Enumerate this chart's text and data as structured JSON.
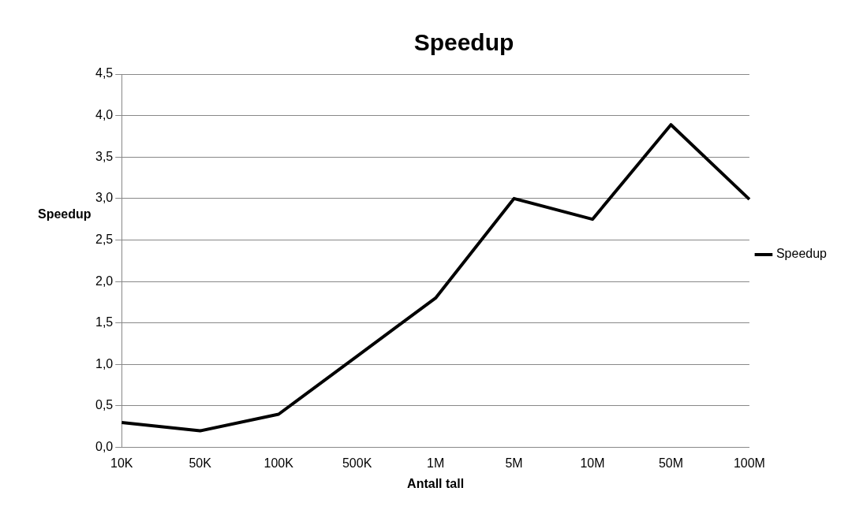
{
  "chart_data": {
    "type": "line",
    "title": "Speedup",
    "xlabel": "Antall tall",
    "ylabel": "Speedup",
    "categories": [
      "10K",
      "50K",
      "100K",
      "500K",
      "1M",
      "5M",
      "10M",
      "50M",
      "100M"
    ],
    "series": [
      {
        "name": "Speedup",
        "color": "#000000",
        "values": [
          0.3,
          0.2,
          0.4,
          1.1,
          1.8,
          3.0,
          2.75,
          3.89,
          2.99
        ]
      }
    ],
    "ylim": [
      0,
      4.5
    ],
    "yticks": [
      {
        "value": 0,
        "label": "0,0"
      },
      {
        "value": 0.5,
        "label": "0,5"
      },
      {
        "value": 1,
        "label": "1,0"
      },
      {
        "value": 1.5,
        "label": "1,5"
      },
      {
        "value": 2,
        "label": "2,0"
      },
      {
        "value": 2.5,
        "label": "2,5"
      },
      {
        "value": 3,
        "label": "3,0"
      },
      {
        "value": 3.5,
        "label": "3,5"
      },
      {
        "value": 4,
        "label": "4,0"
      },
      {
        "value": 4.5,
        "label": "4,5"
      }
    ],
    "grid": "y",
    "legend": "right",
    "marker": "none",
    "line_style": "solid"
  }
}
